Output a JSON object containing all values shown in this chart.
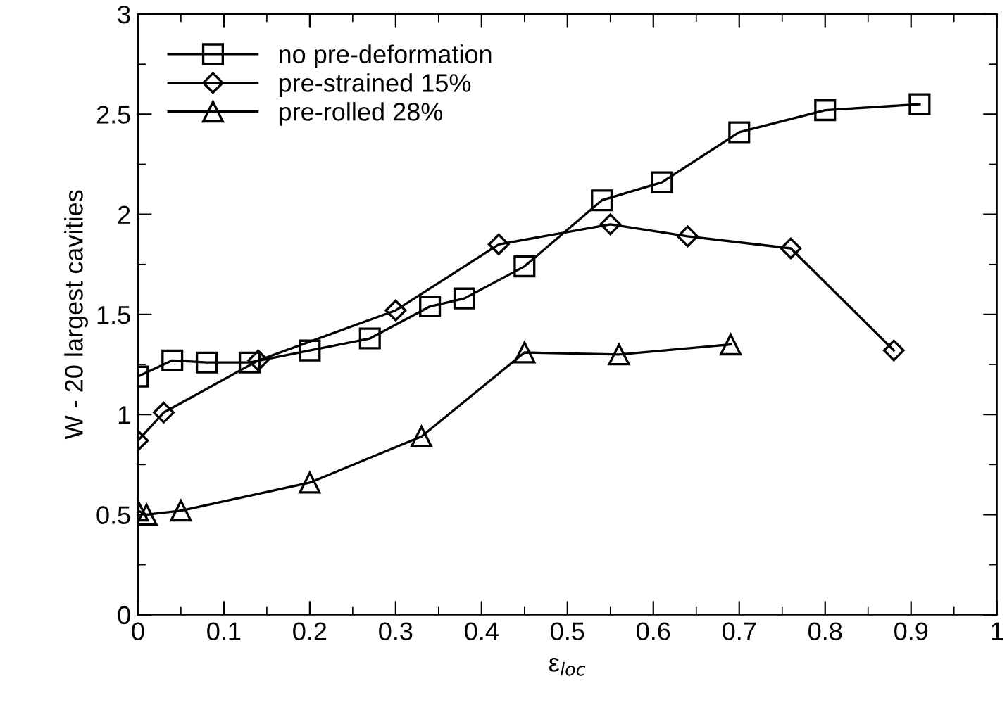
{
  "chart_data": {
    "type": "line",
    "xlabel": "ε$_{loc}$",
    "ylabel": "W - 20 largest cavities",
    "xlim": [
      0,
      1
    ],
    "ylim": [
      0,
      3
    ],
    "xticks": [
      0,
      0.1,
      0.2,
      0.3,
      0.4,
      0.5,
      0.6,
      0.7,
      0.8,
      0.9,
      1
    ],
    "yticks": [
      0,
      0.5,
      1,
      1.5,
      2,
      2.5,
      3
    ],
    "grid": false,
    "legend": "top left",
    "line_style": "solid",
    "series": [
      {
        "name": "no pre-deformation",
        "color": "#000000",
        "marker": "square",
        "x": [
          0,
          0.04,
          0.08,
          0.13,
          0.2,
          0.27,
          0.34,
          0.38,
          0.45,
          0.54,
          0.61,
          0.7,
          0.8,
          0.91
        ],
        "values": [
          1.19,
          1.27,
          1.26,
          1.26,
          1.32,
          1.38,
          1.54,
          1.58,
          1.74,
          2.07,
          2.16,
          2.41,
          2.52,
          2.55
        ]
      },
      {
        "name": "pre-strained 15%",
        "color": "#000000",
        "marker": "diamond",
        "x": [
          0,
          0.03,
          0.14,
          0.3,
          0.42,
          0.55,
          0.64,
          0.76,
          0.88
        ],
        "values": [
          0.87,
          1.01,
          1.27,
          1.52,
          1.85,
          1.95,
          1.89,
          1.83,
          1.32
        ]
      },
      {
        "name": "pre-rolled 28%",
        "color": "#000000",
        "marker": "triangle",
        "x": [
          0,
          0.01,
          0.05,
          0.2,
          0.33,
          0.45,
          0.56,
          0.69
        ],
        "values": [
          0.52,
          0.5,
          0.52,
          0.66,
          0.89,
          1.31,
          1.3,
          1.35
        ]
      }
    ]
  }
}
